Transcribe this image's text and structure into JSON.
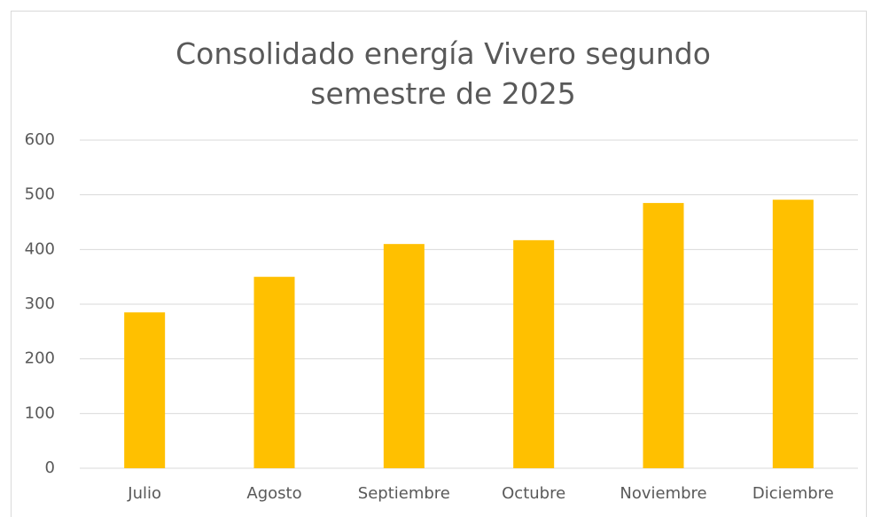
{
  "chart_data": {
    "type": "bar",
    "title": "Consolidado energía Vivero segundo semestre de 2025",
    "categories": [
      "Julio",
      "Agosto",
      "Septiembre",
      "Octubre",
      "Noviembre",
      "Diciembre"
    ],
    "values": [
      285,
      350,
      410,
      417,
      485,
      491
    ],
    "color": "#ffc000",
    "ylim": [
      0,
      600
    ],
    "yticks": [
      0,
      100,
      200,
      300,
      400,
      500,
      600
    ],
    "grid": true
  }
}
